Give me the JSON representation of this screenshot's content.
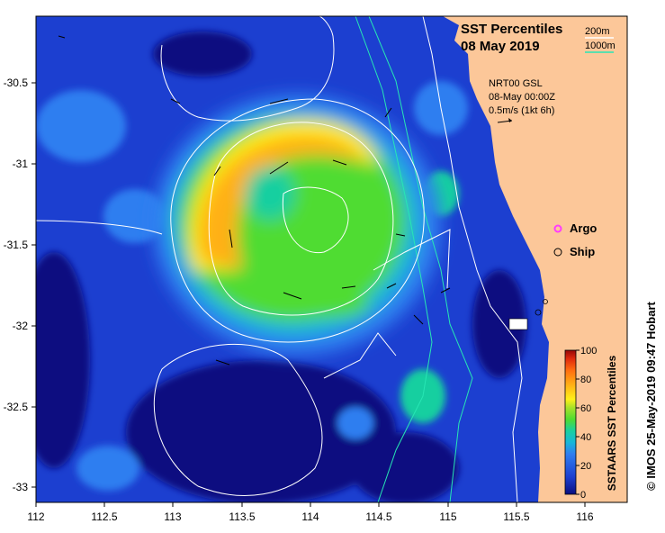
{
  "title": {
    "line1": "SST Percentiles",
    "line2": "08 May 2019"
  },
  "depth_legend": {
    "label_200": "200m",
    "label_1000": "1000m",
    "color_200": "#ffffff",
    "color_1000": "#27e6b4"
  },
  "current_info": {
    "line1": "NRT00 GSL",
    "line2": "08-May 00:00Z",
    "line3": "0.5m/s (1kt 6h)"
  },
  "legend": {
    "argo": "Argo",
    "ship": "Ship",
    "argo_color": "#ff3cff"
  },
  "colorbar": {
    "title": "SSTAARS SST Percentiles",
    "ticks": [
      "0",
      "20",
      "40",
      "60",
      "80",
      "100"
    ],
    "colors": [
      "#0a0f80",
      "#1c3fd0",
      "#2f7ef0",
      "#18b7d8",
      "#19cfa0",
      "#4fdc30",
      "#a6e12a",
      "#fff019",
      "#ffb014",
      "#ff6e10",
      "#e02a0c",
      "#960606"
    ]
  },
  "credit": "© IMOS 25-May-2019 09:47 Hobart",
  "axes": {
    "x_ticks": [
      "112",
      "112.5",
      "113",
      "113.5",
      "114",
      "114.5",
      "115",
      "115.5",
      "116"
    ],
    "y_ticks": [
      "-30.5",
      "-31",
      "-31.5",
      "-32",
      "-32.5",
      "-33"
    ],
    "x_range": [
      112,
      116.3
    ],
    "y_range": [
      -33.1,
      -30.1
    ]
  },
  "colors": {
    "land": "#fcc799",
    "ocean_deep": "#0a0f80",
    "ocean_mid": "#1c3fd0",
    "ocean_light": "#2f7ef0"
  }
}
